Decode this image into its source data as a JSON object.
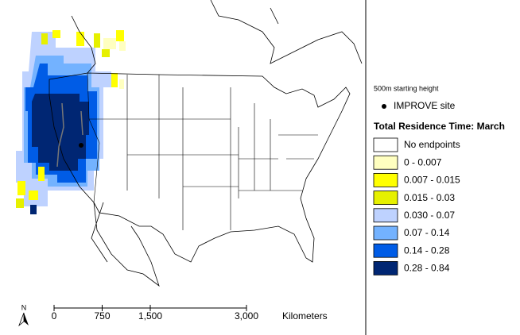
{
  "legend": {
    "height_note": "500m starting height",
    "site_label": "IMPROVE site",
    "title": "Total Residence Time: March",
    "items": [
      {
        "label": "No endpoints",
        "color": "#ffffff"
      },
      {
        "label": "0 - 0.007",
        "color": "#ffffc0"
      },
      {
        "label": "0.007 - 0.015",
        "color": "#ffff00"
      },
      {
        "label": "0.015 - 0.03",
        "color": "#e6f000"
      },
      {
        "label": "0.030 - 0.07",
        "color": "#bed2ff"
      },
      {
        "label": "0.07 - 0.14",
        "color": "#73b2ff"
      },
      {
        "label": "0.14 - 0.28",
        "color": "#005ce6"
      },
      {
        "label": "0.28 - 0.84",
        "color": "#002673"
      }
    ]
  },
  "scale_bar": {
    "unit": "Kilometers",
    "ticks": [
      0,
      750,
      {
        "value": 1500,
        "label": "1,500"
      },
      {
        "value": 3000,
        "label": "3,000"
      }
    ]
  },
  "north_arrow": "N"
}
